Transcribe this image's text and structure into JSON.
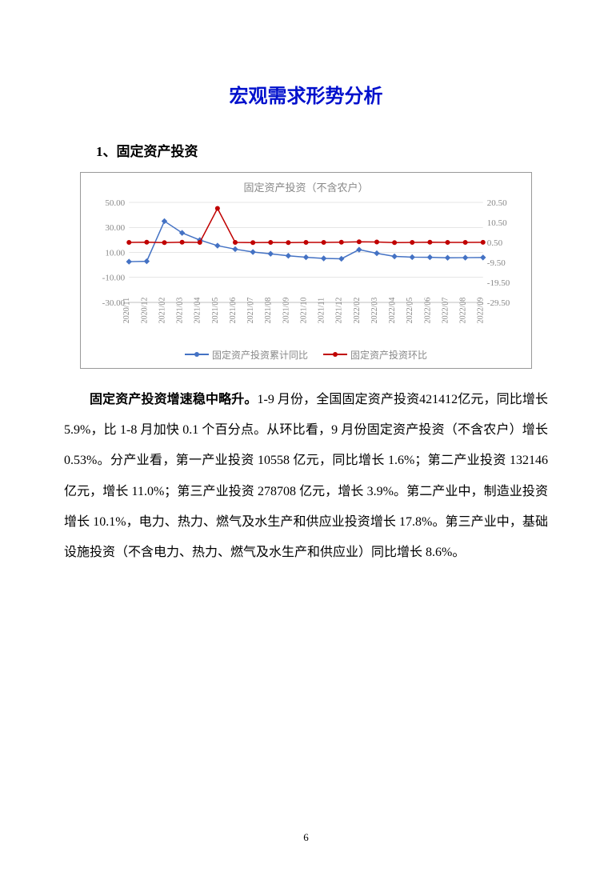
{
  "title": "宏观需求形势分析",
  "section_heading": "1、固定资产投资",
  "chart": {
    "type": "line",
    "title": "固定资产投资（不含农户）",
    "title_fontsize": 13,
    "title_color": "#888888",
    "background_color": "#ffffff",
    "border_color": "#999999",
    "grid_color": "#cccccc",
    "x_labels": [
      "2020/11",
      "2020/12",
      "2021/02",
      "2021/03",
      "2021/04",
      "2021/05",
      "2021/06",
      "2021/07",
      "2021/08",
      "2021/09",
      "2021/10",
      "2021/11",
      "2021/12",
      "2022/02",
      "2022/03",
      "2022/04",
      "2022/05",
      "2022/06",
      "2022/07",
      "2022/08",
      "2022/09"
    ],
    "left_axis": {
      "min": -30.0,
      "max": 50.0,
      "ticks": [
        -30.0,
        -10.0,
        10.0,
        30.0,
        50.0
      ],
      "tick_labels": [
        "-30.00",
        "-10.00",
        "10.00",
        "30.00",
        "50.00"
      ]
    },
    "right_axis": {
      "min": -29.5,
      "max": 20.5,
      "ticks": [
        -29.5,
        -19.5,
        -9.5,
        0.5,
        10.5,
        20.5
      ],
      "tick_labels": [
        "-29.50",
        "-19.50",
        "-9.50",
        "0.50",
        "10.50",
        "20.50"
      ]
    },
    "series": [
      {
        "name": "固定资产投资累计同比",
        "color": "#4472c4",
        "axis": "left",
        "marker": "diamond",
        "line_width": 1.5,
        "values": [
          2.6,
          2.9,
          35.0,
          25.6,
          19.9,
          15.4,
          12.6,
          10.3,
          8.9,
          7.3,
          6.1,
          5.2,
          4.9,
          12.2,
          9.3,
          6.8,
          6.2,
          6.1,
          5.7,
          5.8,
          5.9
        ]
      },
      {
        "name": "固定资产投资环比",
        "color": "#c00000",
        "axis": "right",
        "marker": "circle",
        "line_width": 1.5,
        "values": [
          0.5,
          0.6,
          0.4,
          0.6,
          0.5,
          17.5,
          0.5,
          0.4,
          0.5,
          0.4,
          0.5,
          0.5,
          0.6,
          0.8,
          0.7,
          0.4,
          0.5,
          0.6,
          0.5,
          0.5,
          0.53
        ]
      }
    ],
    "legend_items": [
      "固定资产投资累计同比",
      "固定资产投资环比"
    ],
    "axis_label_color": "#888888",
    "axis_label_fontsize": 11
  },
  "body": {
    "bold_lead": "固定资产投资增速稳中略升。",
    "text": "1-9 月份，全国固定资产投资421412亿元，同比增长 5.9%，比 1-8 月加快 0.1 个百分点。从环比看，9 月份固定资产投资（不含农户）增长 0.53%。分产业看，第一产业投资 10558 亿元，同比增长 1.6%；第二产业投资 132146 亿元，增长 11.0%；第三产业投资 278708 亿元，增长 3.9%。第二产业中，制造业投资增长 10.1%，电力、热力、燃气及水生产和供应业投资增长 17.8%。第三产业中，基础设施投资（不含电力、热力、燃气及水生产和供应业）同比增长 8.6%。"
  },
  "page_number": "6"
}
